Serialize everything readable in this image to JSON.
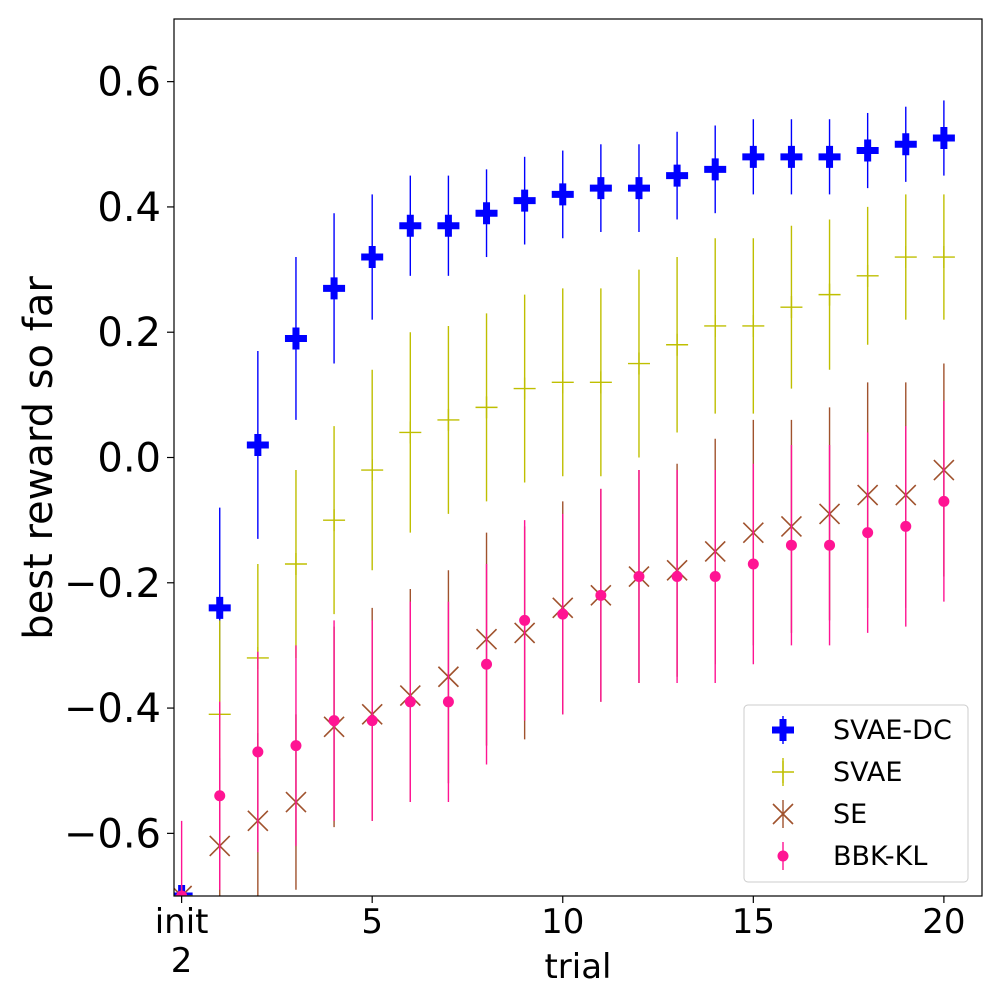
{
  "chart_data": {
    "type": "scatter",
    "xlabel": "trial",
    "ylabel": "best reward so far",
    "xlim": [
      -0.2,
      21
    ],
    "ylim": [
      -0.7,
      0.7
    ],
    "x_ticks": [
      {
        "value": 0,
        "label": "init",
        "label2": "2"
      },
      {
        "value": 5,
        "label": "5"
      },
      {
        "value": 10,
        "label": "10"
      },
      {
        "value": 15,
        "label": "15"
      },
      {
        "value": 20,
        "label": "20"
      }
    ],
    "y_ticks": [
      {
        "value": 0.6,
        "label": "0.6"
      },
      {
        "value": 0.4,
        "label": "0.4"
      },
      {
        "value": 0.2,
        "label": "0.2"
      },
      {
        "value": 0.0,
        "label": "0.0"
      },
      {
        "value": -0.2,
        "label": "−0.2"
      },
      {
        "value": -0.4,
        "label": "−0.4"
      },
      {
        "value": -0.6,
        "label": "−0.6"
      }
    ],
    "legend_position": "lower-right",
    "x": [
      0,
      1,
      2,
      3,
      4,
      5,
      6,
      7,
      8,
      9,
      10,
      11,
      12,
      13,
      14,
      15,
      16,
      17,
      18,
      19,
      20
    ],
    "series": [
      {
        "name": "SVAE-DC",
        "marker": "thick-plus",
        "color": "#0000ff",
        "values": [
          -0.7,
          -0.24,
          0.02,
          0.19,
          0.27,
          0.32,
          0.37,
          0.37,
          0.39,
          0.41,
          0.42,
          0.43,
          0.43,
          0.45,
          0.46,
          0.48,
          0.48,
          0.48,
          0.49,
          0.5,
          0.51
        ],
        "errors": [
          0.0,
          0.16,
          0.15,
          0.13,
          0.12,
          0.1,
          0.08,
          0.08,
          0.07,
          0.07,
          0.07,
          0.07,
          0.07,
          0.07,
          0.07,
          0.06,
          0.06,
          0.06,
          0.06,
          0.06,
          0.06
        ]
      },
      {
        "name": "SVAE",
        "marker": "plus",
        "color": "#bfbf00",
        "values": [
          -0.7,
          -0.41,
          -0.32,
          -0.17,
          -0.1,
          -0.02,
          0.04,
          0.06,
          0.08,
          0.11,
          0.12,
          0.12,
          0.15,
          0.18,
          0.21,
          0.21,
          0.24,
          0.26,
          0.29,
          0.32,
          0.32
        ],
        "errors": [
          0.0,
          0.15,
          0.15,
          0.15,
          0.15,
          0.16,
          0.16,
          0.15,
          0.15,
          0.15,
          0.15,
          0.15,
          0.15,
          0.14,
          0.14,
          0.14,
          0.13,
          0.12,
          0.11,
          0.1,
          0.1
        ]
      },
      {
        "name": "SE",
        "marker": "x",
        "color": "#a0522d",
        "values": [
          -0.7,
          -0.62,
          -0.58,
          -0.55,
          -0.43,
          -0.41,
          -0.38,
          -0.35,
          -0.29,
          -0.28,
          -0.24,
          -0.22,
          -0.19,
          -0.18,
          -0.15,
          -0.12,
          -0.11,
          -0.09,
          -0.06,
          -0.06,
          -0.02
        ],
        "errors": [
          0.0,
          0.14,
          0.14,
          0.14,
          0.16,
          0.17,
          0.17,
          0.17,
          0.17,
          0.17,
          0.17,
          0.17,
          0.17,
          0.17,
          0.18,
          0.18,
          0.17,
          0.17,
          0.18,
          0.18,
          0.17
        ]
      },
      {
        "name": "BBK-KL",
        "marker": "dot",
        "color": "#ff1493",
        "values": [
          -0.7,
          -0.54,
          -0.47,
          -0.46,
          -0.42,
          -0.42,
          -0.39,
          -0.39,
          -0.33,
          -0.26,
          -0.25,
          -0.22,
          -0.19,
          -0.19,
          -0.19,
          -0.17,
          -0.14,
          -0.14,
          -0.12,
          -0.11,
          -0.07
        ],
        "errors": [
          0.12,
          0.15,
          0.16,
          0.16,
          0.16,
          0.16,
          0.16,
          0.16,
          0.16,
          0.16,
          0.16,
          0.17,
          0.17,
          0.17,
          0.17,
          0.16,
          0.16,
          0.16,
          0.16,
          0.16,
          0.16
        ]
      }
    ]
  }
}
